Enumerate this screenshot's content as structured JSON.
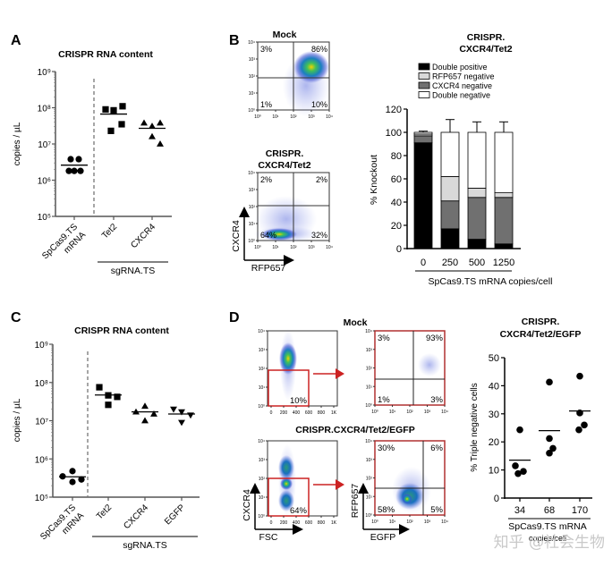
{
  "panels": {
    "A": {
      "letter": "A"
    },
    "B": {
      "letter": "B"
    },
    "C": {
      "letter": "C"
    },
    "D": {
      "letter": "D"
    }
  },
  "flow": {
    "B_mock": {
      "title": "Mock",
      "quadrants": {
        "ul": "3%",
        "ur": "86%",
        "ll": "1%",
        "lr": "10%"
      }
    },
    "B_crispr": {
      "title_line1": "CRISPR.",
      "title_line2": "CXCR4/Tet2",
      "quadrants": {
        "ul": "2%",
        "ur": "2%",
        "ll": "64%",
        "lr": "32%"
      },
      "ylabel": "CXCR4",
      "xlabel": "RFP657"
    },
    "log_ticks": [
      "10⁰",
      "10¹",
      "10²",
      "10³",
      "10⁴"
    ],
    "fsc_ticks": [
      "0",
      "200",
      "400",
      "600",
      "800",
      "1K"
    ],
    "D_mock_title": "Mock",
    "D_crispr_title": "CRISPR.CXCR4/Tet2/EGFP",
    "D_mock_gate": "10%",
    "D_mock_quadrants": {
      "ul": "3%",
      "ur": "93%",
      "ll": "1%",
      "lr": "3%"
    },
    "D_crispr_gate": "64%",
    "D_crispr_quadrants": {
      "ul": "30%",
      "ur": "6%",
      "ll": "58%",
      "lr": "5%"
    },
    "D_left_ylabel": "CXCR4",
    "D_left_xlabel": "FSC",
    "D_right_ylabel": "RFP657",
    "D_right_xlabel": "EGFP",
    "gate_color": "#cc2222"
  },
  "watermark": "知乎 @社会生物",
  "chart_data": [
    {
      "id": "A",
      "type": "scatter",
      "title": "CRISPR RNA content",
      "ylabel": "copies / µL",
      "yscale": "log",
      "ylim": [
        100000,
        1000000000
      ],
      "ytick_labels": [
        "10⁵",
        "10⁶",
        "10⁷",
        "10⁸",
        "10⁹"
      ],
      "categories": [
        "SpCas9.TS mRNA",
        "Tet2",
        "CXCR4"
      ],
      "category_label_lines": [
        [
          "SpCas9.TS",
          "mRNA"
        ],
        [
          "Tet2"
        ],
        [
          "CXCR4"
        ]
      ],
      "group_label": "sgRNA.TS",
      "series": [
        {
          "name": "SpCas9.TS mRNA",
          "marker": "circle",
          "values": [
            3800000,
            3800000,
            1800000,
            1800000,
            1800000
          ],
          "mean": 2600000
        },
        {
          "name": "Tet2",
          "marker": "square",
          "values": [
            90000000,
            85000000,
            110000000,
            35000000,
            23000000
          ],
          "mean": 67000000
        },
        {
          "name": "CXCR4",
          "marker": "triangle",
          "values": [
            38000000,
            31000000,
            38000000,
            10000000,
            16000000
          ],
          "mean": 27000000
        }
      ]
    },
    {
      "id": "B",
      "type": "bar",
      "stacked": true,
      "title_line1": "CRISPR.",
      "title_line2": "CXCR4/Tet2",
      "ylabel": "% Knockout",
      "xlabel": "SpCas9.TS mRNA copies/cell",
      "ylim": [
        0,
        120
      ],
      "yticks": [
        0,
        20,
        40,
        60,
        80,
        100,
        120
      ],
      "categories": [
        "0",
        "250",
        "500",
        "1250"
      ],
      "legend_position": "top",
      "series": [
        {
          "name": "Double positive",
          "color": "#000000",
          "values": [
            91,
            17,
            8,
            4
          ],
          "err": [
            3,
            7,
            4,
            3
          ]
        },
        {
          "name": "CXCR4 negative",
          "color": "#707070",
          "values": [
            6,
            24,
            36,
            40
          ],
          "err": [
            2,
            6,
            5,
            2
          ]
        },
        {
          "name": "RFP657 negative",
          "color": "#d9d9d9",
          "values": [
            1.5,
            21,
            8,
            4
          ],
          "err": [
            1,
            9,
            3,
            2
          ]
        },
        {
          "name": "Double negative",
          "color": "#ffffff",
          "values": [
            1.5,
            38,
            48,
            52
          ],
          "err": [
            1,
            11,
            9,
            9
          ]
        }
      ],
      "legend_order": [
        "Double positive",
        "RFP657 negative",
        "CXCR4 negative",
        "Double negative"
      ]
    },
    {
      "id": "C",
      "type": "scatter",
      "title": "CRISPR RNA content",
      "ylabel": "copies / µL",
      "yscale": "log",
      "ylim": [
        100000,
        1000000000
      ],
      "ytick_labels": [
        "10⁵",
        "10⁶",
        "10⁷",
        "10⁸",
        "10⁹"
      ],
      "categories": [
        "SpCas9.TS mRNA",
        "Tet2",
        "CXCR4",
        "EGFP"
      ],
      "category_label_lines": [
        [
          "SpCas9.TS",
          "mRNA"
        ],
        [
          "Tet2"
        ],
        [
          "CXCR4"
        ],
        [
          "EGFP"
        ]
      ],
      "group_label": "sgRNA.TS",
      "series": [
        {
          "name": "SpCas9.TS mRNA",
          "marker": "circle",
          "values": [
            350000,
            480000,
            250000,
            290000
          ],
          "mean": 340000
        },
        {
          "name": "Tet2",
          "marker": "square",
          "values": [
            75000000,
            46000000,
            26000000,
            42000000
          ],
          "mean": 47000000
        },
        {
          "name": "CXCR4",
          "marker": "triangle",
          "values": [
            17000000,
            24000000,
            10000000,
            15000000
          ],
          "mean": 17000000
        },
        {
          "name": "EGFP",
          "marker": "triangle-down",
          "values": [
            20000000,
            17000000,
            9000000,
            14000000
          ],
          "mean": 15000000
        }
      ]
    },
    {
      "id": "D",
      "type": "scatter",
      "title_line1": "CRISPR.",
      "title_line2": "CXCR4/Tet2/EGFP",
      "ylabel": "% Triple negative cells",
      "xlabel_line1": "SpCas9.TS mRNA",
      "xlabel_line2": "copies/cell",
      "ylim": [
        0,
        50
      ],
      "yticks": [
        0,
        10,
        20,
        30,
        40,
        50
      ],
      "categories": [
        "34",
        "68",
        "170"
      ],
      "series": [
        {
          "name": "34",
          "marker": "circle",
          "values": [
            24.3,
            11.5,
            8.7,
            9.5
          ],
          "mean": 13.5
        },
        {
          "name": "68",
          "marker": "circle",
          "values": [
            41.3,
            21.2,
            17.7,
            16.0
          ],
          "mean": 24.0
        },
        {
          "name": "170",
          "marker": "circle",
          "values": [
            43.4,
            30.3,
            26.0,
            24.3
          ],
          "mean": 31.0
        }
      ]
    }
  ]
}
